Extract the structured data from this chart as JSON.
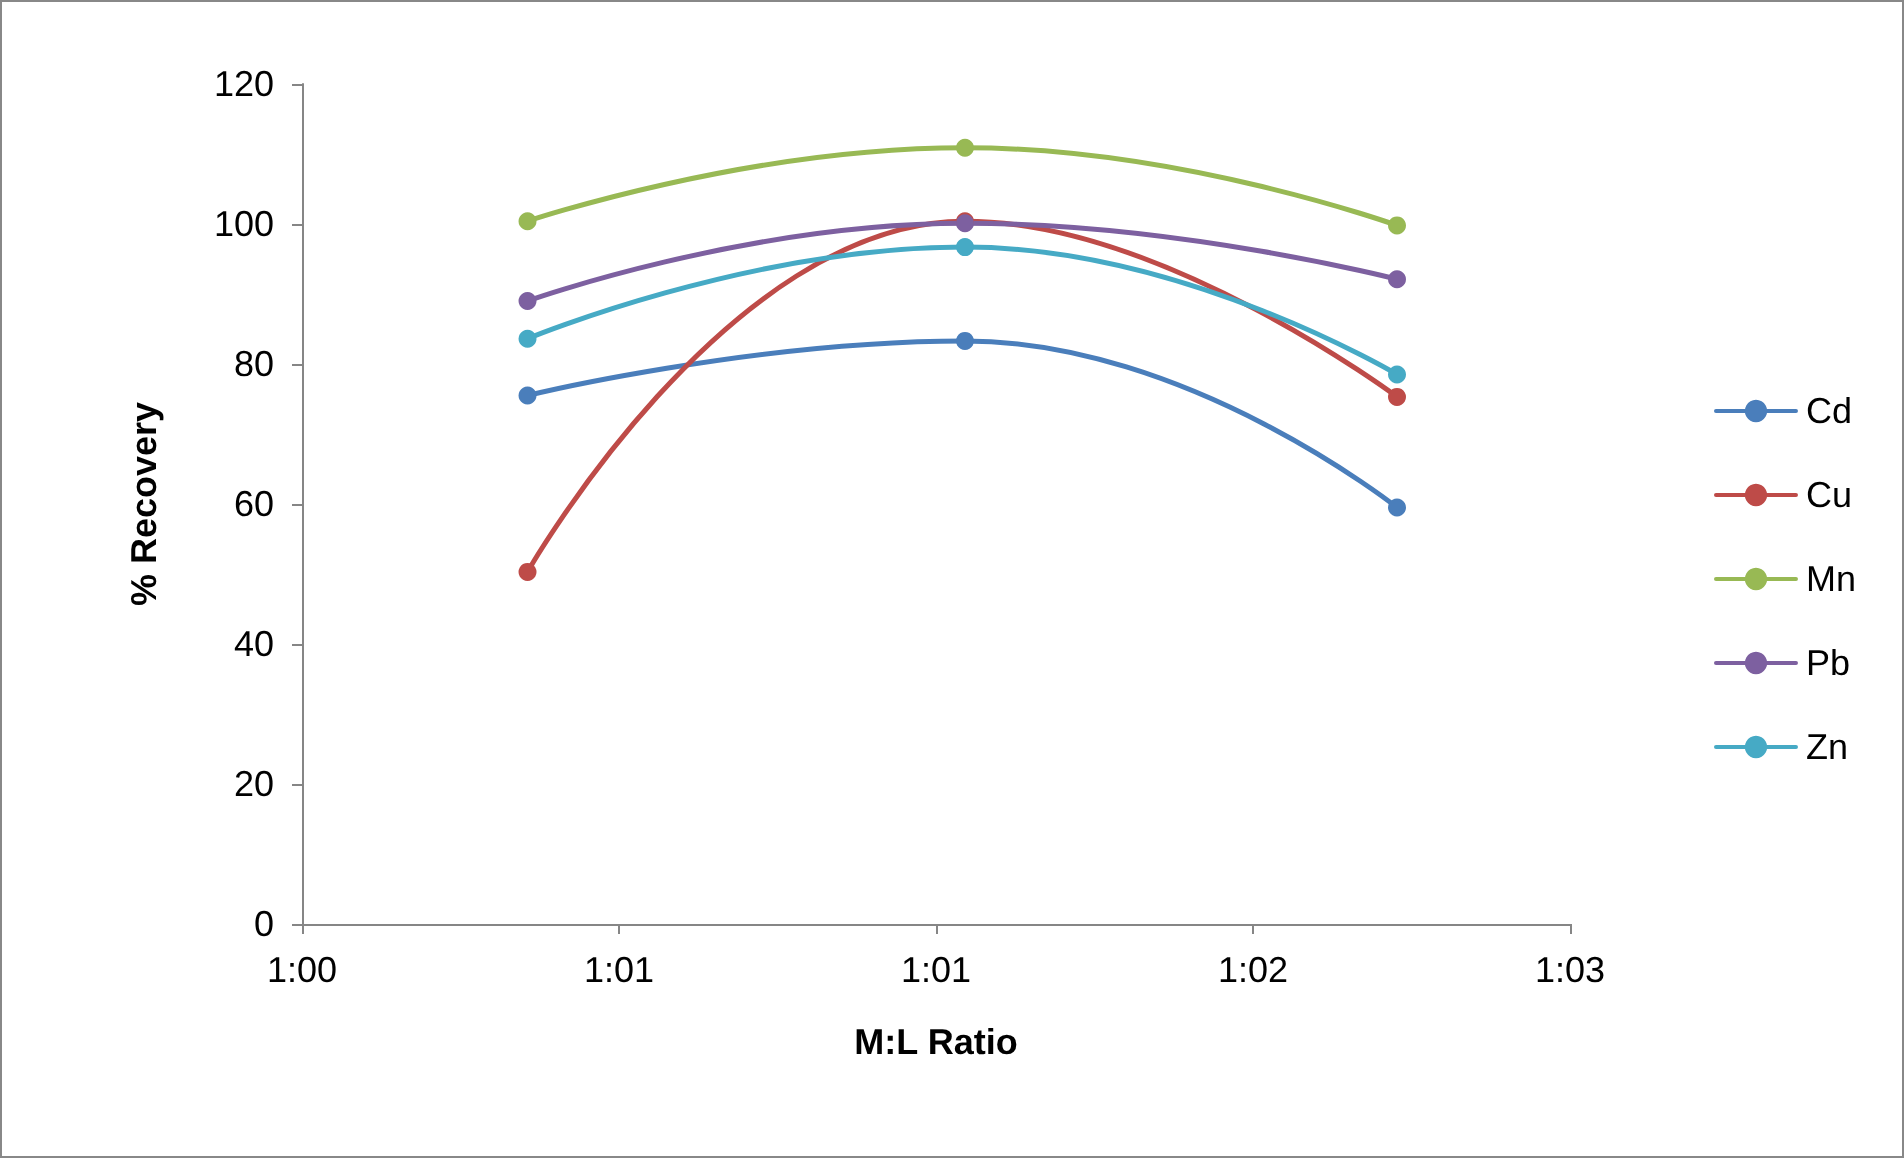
{
  "chart_data": {
    "type": "line",
    "xlabel": "M:L Ratio",
    "ylabel": "% Recovery",
    "x": [
      1.0083,
      1.0244,
      1.0403
    ],
    "series": [
      {
        "name": "Cd",
        "color": "#4a7ebb",
        "values": [
          75.5,
          83.3,
          59.5
        ]
      },
      {
        "name": "Cu",
        "color": "#be4b48",
        "values": [
          50.3,
          100.4,
          75.3
        ]
      },
      {
        "name": "Mn",
        "color": "#98b954",
        "values": [
          100.4,
          110.9,
          99.8
        ]
      },
      {
        "name": "Pb",
        "color": "#7d60a0",
        "values": [
          89,
          100.1,
          92.1
        ]
      },
      {
        "name": "Zn",
        "color": "#46aac5",
        "values": [
          83.6,
          96.7,
          78.5
        ]
      }
    ],
    "xlim": [
      1,
      1.046667
    ],
    "xticks": [
      {
        "value": 1,
        "label": "1:00"
      },
      {
        "value": 1.011667,
        "label": "1:01"
      },
      {
        "value": 1.023333,
        "label": "1:01"
      },
      {
        "value": 1.035,
        "label": "1:02"
      },
      {
        "value": 1.046667,
        "label": "1:03"
      }
    ],
    "ylim": [
      0,
      120
    ],
    "yticks": [
      0,
      20,
      40,
      60,
      80,
      100,
      120
    ],
    "grid": false,
    "legend": "right",
    "marker": "circle",
    "line_style": "solid"
  }
}
